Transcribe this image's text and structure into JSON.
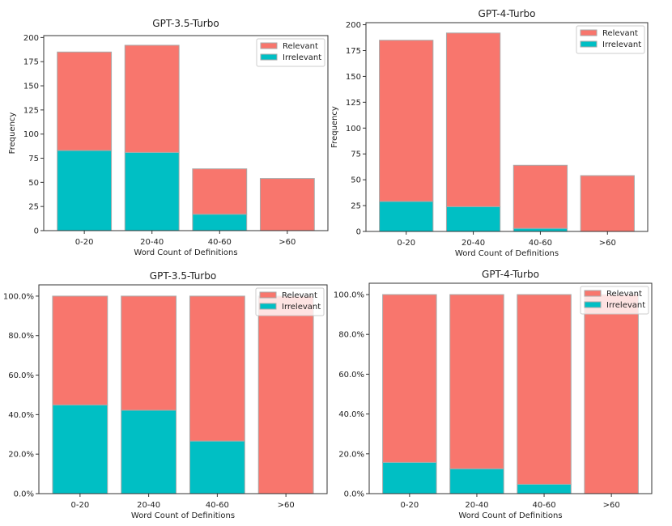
{
  "chart_data": [
    {
      "type": "bar",
      "stacked": true,
      "title": "GPT-3.5-Turbo",
      "xlabel": "Word Count of Definitions",
      "ylabel": "Frequency",
      "categories": [
        "0-20",
        "20-40",
        "40-60",
        ">60"
      ],
      "series": [
        {
          "name": "Irrelevant",
          "values": [
            83,
            81,
            17,
            0
          ],
          "color": "#00bfc4"
        },
        {
          "name": "Relevant",
          "values": [
            102,
            111,
            47,
            54
          ],
          "color": "#f8766d"
        }
      ],
      "ylim": [
        0,
        202
      ],
      "yticks": [
        "0",
        "25",
        "50",
        "75",
        "100",
        "125",
        "150",
        "175",
        "200"
      ],
      "ytick_values": [
        0,
        25,
        50,
        75,
        100,
        125,
        150,
        175,
        200
      ],
      "legend": {
        "entries": [
          "Relevant",
          "Irrelevant"
        ],
        "placement": "upper-right"
      },
      "grid": false
    },
    {
      "type": "bar",
      "stacked": true,
      "title": "GPT-4-Turbo",
      "xlabel": "Word Count of Definitions",
      "ylabel": "Frequency",
      "categories": [
        "0-20",
        "20-40",
        "40-60",
        ">60"
      ],
      "series": [
        {
          "name": "Irrelevant",
          "values": [
            29,
            24,
            3,
            0
          ],
          "color": "#00bfc4"
        },
        {
          "name": "Relevant",
          "values": [
            156,
            168,
            61,
            54
          ],
          "color": "#f8766d"
        }
      ],
      "ylim": [
        0,
        202
      ],
      "yticks": [
        "0",
        "25",
        "50",
        "75",
        "100",
        "125",
        "150",
        "175",
        "200"
      ],
      "ytick_values": [
        0,
        25,
        50,
        75,
        100,
        125,
        150,
        175,
        200
      ],
      "legend": {
        "entries": [
          "Relevant",
          "Irrelevant"
        ],
        "placement": "upper-right"
      },
      "grid": false
    },
    {
      "type": "bar",
      "stacked": true,
      "title": "GPT-3.5-Turbo",
      "xlabel": "Word Count of Definitions",
      "ylabel": "",
      "categories": [
        "0-20",
        "20-40",
        "40-60",
        ">60"
      ],
      "series": [
        {
          "name": "Irrelevant",
          "values": [
            44.9,
            42.2,
            26.6,
            0
          ],
          "color": "#00bfc4"
        },
        {
          "name": "Relevant",
          "values": [
            55.1,
            57.8,
            73.4,
            100
          ],
          "color": "#f8766d"
        }
      ],
      "ylim": [
        0,
        105.7
      ],
      "yticks": [
        "0.0%",
        "20.0%",
        "40.0%",
        "60.0%",
        "80.0%",
        "100.0%"
      ],
      "ytick_values": [
        0,
        20,
        40,
        60,
        80,
        100
      ],
      "legend": {
        "entries": [
          "Relevant",
          "Irrelevant"
        ],
        "placement": "upper-right"
      },
      "grid": false
    },
    {
      "type": "bar",
      "stacked": true,
      "title": "GPT-4-Turbo",
      "xlabel": "Word Count of Definitions",
      "ylabel": "",
      "categories": [
        "0-20",
        "20-40",
        "40-60",
        ">60"
      ],
      "series": [
        {
          "name": "Irrelevant",
          "values": [
            15.7,
            12.5,
            4.7,
            0
          ],
          "color": "#00bfc4"
        },
        {
          "name": "Relevant",
          "values": [
            84.3,
            87.5,
            95.3,
            100
          ],
          "color": "#f8766d"
        }
      ],
      "ylim": [
        0,
        105.7
      ],
      "yticks": [
        "0.0%",
        "20.0%",
        "40.0%",
        "60.0%",
        "80.0%",
        "100.0%"
      ],
      "ytick_values": [
        0,
        20,
        40,
        60,
        80,
        100
      ],
      "legend": {
        "entries": [
          "Relevant",
          "Irrelevant"
        ],
        "placement": "upper-right"
      },
      "grid": false
    }
  ]
}
